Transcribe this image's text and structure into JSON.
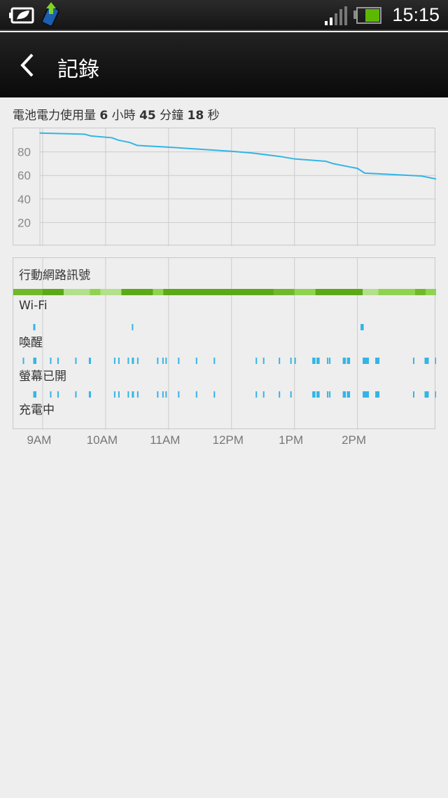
{
  "status_bar": {
    "time": "15:15",
    "icons": [
      "power-saver-icon",
      "upload-phone-icon",
      "signal-icon",
      "battery-icon"
    ],
    "battery_color": "#5cb800"
  },
  "app_bar": {
    "title": "記錄",
    "back_icon": "chevron-left-icon"
  },
  "summary": {
    "prefix": "電池電力使用量",
    "hours": "6",
    "hours_unit": "小時",
    "minutes": "45",
    "minutes_unit": "分鐘",
    "seconds": "18",
    "seconds_unit": "秒"
  },
  "chart_data": {
    "type": "line",
    "xlim": [
      "08:32",
      "15:15"
    ],
    "ylim": [
      0,
      100
    ],
    "yticks": [
      "20",
      "40",
      "60",
      "80"
    ],
    "xticks": [
      {
        "time": "09:00",
        "label": "9AM"
      },
      {
        "time": "10:00",
        "label": "10AM"
      },
      {
        "time": "11:00",
        "label": "11AM"
      },
      {
        "time": "12:00",
        "label": "12PM"
      },
      {
        "time": "13:00",
        "label": "1PM"
      },
      {
        "time": "14:00",
        "label": "2PM"
      }
    ],
    "line_color": "#33b5e5",
    "grid": true,
    "battery": [
      [
        "08:57",
        96
      ],
      [
        "09:40",
        95
      ],
      [
        "09:46",
        93.5
      ],
      [
        "10:06",
        92
      ],
      [
        "10:12",
        90
      ],
      [
        "10:23",
        88
      ],
      [
        "10:30",
        85.5
      ],
      [
        "11:00",
        84
      ],
      [
        "12:00",
        80.5
      ],
      [
        "12:20",
        79
      ],
      [
        "12:47",
        76
      ],
      [
        "13:00",
        74
      ],
      [
        "13:30",
        72
      ],
      [
        "13:37",
        70
      ],
      [
        "13:54",
        67
      ],
      [
        "14:00",
        66
      ],
      [
        "14:07",
        62
      ],
      [
        "15:01",
        59.5
      ],
      [
        "15:15",
        57
      ]
    ]
  },
  "events": {
    "bar_color": "#33b5e5",
    "signal_colors": [
      "#b3e08a",
      "#8fd34f",
      "#70b92a",
      "#5aa915"
    ],
    "rows": [
      {
        "label": "行動網路訊號",
        "kind": "signal",
        "segments": [
          [
            "08:32",
            "09:00",
            2
          ],
          [
            "09:00",
            "09:20",
            3
          ],
          [
            "09:20",
            "09:45",
            0
          ],
          [
            "09:45",
            "09:55",
            1
          ],
          [
            "09:55",
            "10:15",
            0
          ],
          [
            "10:15",
            "10:45",
            3
          ],
          [
            "10:45",
            "10:55",
            1
          ],
          [
            "10:55",
            "12:40",
            3
          ],
          [
            "12:40",
            "13:00",
            2
          ],
          [
            "13:00",
            "13:20",
            1
          ],
          [
            "13:20",
            "13:40",
            3
          ],
          [
            "13:40",
            "14:05",
            3
          ],
          [
            "14:05",
            "14:20",
            0
          ],
          [
            "14:20",
            "14:55",
            1
          ],
          [
            "14:55",
            "15:05",
            2
          ],
          [
            "15:05",
            "15:15",
            1
          ]
        ]
      },
      {
        "label": "Wi-Fi",
        "kind": "bars",
        "bars": [
          [
            "08:51",
            2
          ],
          [
            "10:25",
            1
          ],
          [
            "14:03",
            3
          ]
        ]
      },
      {
        "label": "喚醒",
        "kind": "bars",
        "bars": [
          [
            "08:41",
            1
          ],
          [
            "08:51",
            3
          ],
          [
            "09:07",
            1
          ],
          [
            "09:14",
            1
          ],
          [
            "09:31",
            1
          ],
          [
            "09:44",
            2
          ],
          [
            "10:08",
            1
          ],
          [
            "10:12",
            1
          ],
          [
            "10:21",
            1
          ],
          [
            "10:25",
            2
          ],
          [
            "10:30",
            1
          ],
          [
            "10:49",
            1
          ],
          [
            "10:54",
            1
          ],
          [
            "10:57",
            1
          ],
          [
            "11:09",
            1
          ],
          [
            "11:26",
            1
          ],
          [
            "11:43",
            1
          ],
          [
            "12:23",
            1
          ],
          [
            "12:30",
            1
          ],
          [
            "12:45",
            1
          ],
          [
            "12:56",
            1
          ],
          [
            "13:00",
            1
          ],
          [
            "13:17",
            3
          ],
          [
            "13:21",
            3
          ],
          [
            "13:31",
            1
          ],
          [
            "13:33",
            1
          ],
          [
            "13:46",
            3
          ],
          [
            "13:50",
            3
          ],
          [
            "14:05",
            6
          ],
          [
            "14:17",
            4
          ],
          [
            "14:53",
            1
          ],
          [
            "15:04",
            4
          ],
          [
            "15:14",
            1
          ]
        ]
      },
      {
        "label": "螢幕已開",
        "kind": "bars",
        "bars": [
          [
            "08:51",
            3
          ],
          [
            "09:07",
            1
          ],
          [
            "09:14",
            1
          ],
          [
            "09:31",
            1
          ],
          [
            "09:44",
            2
          ],
          [
            "10:08",
            1
          ],
          [
            "10:12",
            1
          ],
          [
            "10:21",
            1
          ],
          [
            "10:25",
            2
          ],
          [
            "10:30",
            1
          ],
          [
            "10:49",
            1
          ],
          [
            "10:54",
            1
          ],
          [
            "10:57",
            1
          ],
          [
            "11:09",
            1
          ],
          [
            "11:26",
            1
          ],
          [
            "11:43",
            1
          ],
          [
            "12:23",
            1
          ],
          [
            "12:30",
            1
          ],
          [
            "12:45",
            1
          ],
          [
            "12:56",
            1
          ],
          [
            "13:17",
            3
          ],
          [
            "13:21",
            3
          ],
          [
            "13:31",
            1
          ],
          [
            "13:33",
            1
          ],
          [
            "13:46",
            3
          ],
          [
            "13:50",
            3
          ],
          [
            "14:05",
            6
          ],
          [
            "14:17",
            4
          ],
          [
            "14:53",
            1
          ],
          [
            "15:04",
            4
          ],
          [
            "15:14",
            1
          ]
        ]
      },
      {
        "label": "充電中",
        "kind": "bars",
        "bars": []
      }
    ]
  }
}
